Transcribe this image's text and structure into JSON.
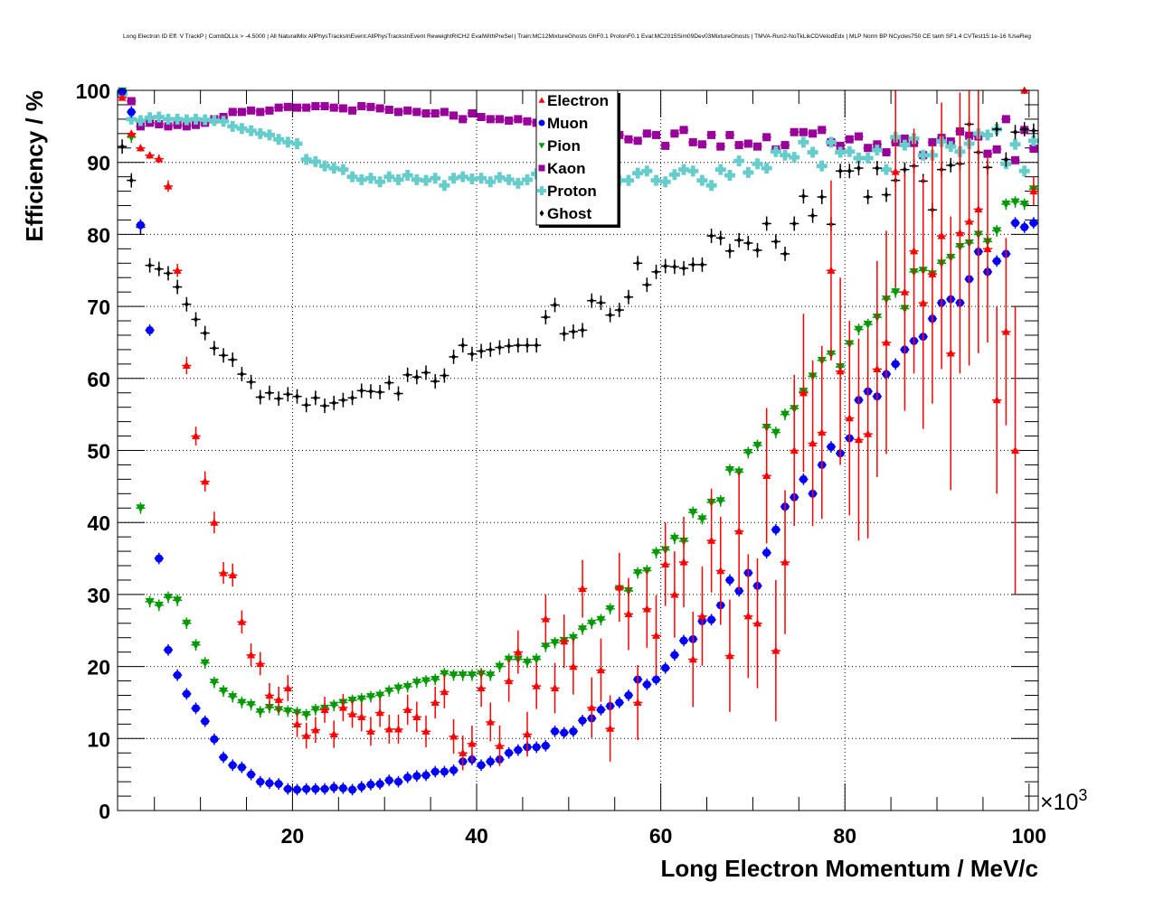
{
  "chart_data": {
    "type": "scatter",
    "title": "Long Electron ID Eff. V TrackP | CombDLLk > -4.5000 | All NaturalMix AllPhysTracksInEvent:AllPhysTracksInEvent ReweightRICH2 EvalWithPreSel | Train:MC12MixtureGhosts GhF0.1 ProtonF0.1 Eval:MC2015Sim09Dev03MixtureGhosts | TMVA-Run2-NoTkLikCDVelodEdx | MLP Norm BP NCycles750 CE tanh SF1.4 CVTest15:1e-16 !UseReg",
    "xlabel": "Long Electron Momentum / MeV/c",
    "ylabel": "Efficiency / %",
    "x_multiplier_label": "×10",
    "x_multiplier_exp": "3",
    "xlim": [
      1,
      101
    ],
    "ylim": [
      0,
      100
    ],
    "x_ticks": [
      "20",
      "40",
      "60",
      "80",
      "100"
    ],
    "x_tick_values": [
      20,
      40,
      60,
      80,
      100
    ],
    "y_ticks": [
      "0",
      "10",
      "20",
      "30",
      "40",
      "50",
      "60",
      "70",
      "80",
      "90",
      "100"
    ],
    "y_tick_values": [
      0,
      10,
      20,
      30,
      40,
      50,
      60,
      70,
      80,
      90,
      100
    ],
    "grid": true,
    "legend_placement": "top-center",
    "x_start": 1.5,
    "x_step": 1,
    "bin_half_width": 0.5,
    "series": [
      {
        "name": "Electron",
        "marker": "triangle-up",
        "color": "#ff0000",
        "values": [
          99,
          94,
          92,
          91,
          90.5,
          86.7,
          75,
          61.8,
          52,
          45.7,
          40,
          33,
          32.7,
          26.2,
          21.6,
          20.4,
          16,
          15.4,
          17,
          12,
          10.4,
          11.2,
          14,
          10.6,
          14.3,
          13.4,
          13,
          11,
          13.6,
          11.3,
          11.3,
          14,
          13,
          11,
          15,
          16.5,
          10.3,
          8,
          9.3,
          17,
          12.3,
          9,
          18,
          22,
          10.6,
          17.3,
          26.6,
          17,
          23.5,
          20,
          30.8,
          14.3,
          19.5,
          11.4,
          31,
          27.3,
          15,
          28,
          24.3,
          34.2,
          30,
          34.5,
          21,
          27,
          37.5,
          33.3,
          21.5,
          38.8,
          27,
          26,
          46.5,
          22.2,
          34.5,
          50,
          58,
          51,
          52.5,
          75,
          61,
          54.5,
          51.5,
          52.3,
          61.3,
          65,
          88.7,
          72,
          77.7,
          70.5,
          74.5,
          79.8,
          63.5,
          80.2,
          81.8,
          83.5,
          78,
          57,
          66.5,
          50,
          100,
          86
        ],
        "err": [
          0.3,
          0.5,
          0.5,
          0.5,
          0.6,
          0.8,
          0.9,
          1.2,
          1.3,
          1.4,
          1.5,
          1.5,
          1.6,
          1.6,
          1.6,
          1.6,
          1.7,
          1.8,
          1.8,
          1.8,
          1.8,
          1.8,
          1.8,
          1.9,
          1.9,
          1.9,
          2,
          2,
          2,
          2,
          2,
          2.1,
          2.1,
          2.2,
          2.2,
          2.3,
          2.4,
          2.4,
          2.5,
          2.6,
          2.7,
          2.8,
          2.9,
          3,
          3.1,
          3.2,
          3.4,
          3.5,
          3.7,
          3.9,
          4,
          4.2,
          4.4,
          4.6,
          4.8,
          5,
          5.2,
          5.4,
          5.6,
          5.8,
          6,
          6.3,
          6.6,
          6.9,
          7.2,
          7.5,
          7.8,
          8.2,
          8.6,
          9,
          9.4,
          9.8,
          10,
          10.5,
          11,
          11.5,
          12,
          12.5,
          13,
          13.5,
          14,
          14.5,
          15,
          15.5,
          16,
          16.5,
          17,
          17.5,
          18,
          18.5,
          19,
          19.5,
          20,
          20,
          13,
          13,
          13,
          20,
          0.5,
          2
        ]
      },
      {
        "name": "Muon",
        "marker": "circle",
        "color": "#0000ff",
        "values": [
          99.8,
          97,
          81.3,
          66.7,
          35,
          22.3,
          18.8,
          16.2,
          14.2,
          12.4,
          9.9,
          7.4,
          6.3,
          6,
          5,
          4,
          3.8,
          3.7,
          3,
          2.9,
          3,
          3,
          3,
          3.2,
          3.1,
          2.9,
          3.3,
          3.6,
          3.7,
          4.2,
          4,
          4.6,
          4.8,
          4.9,
          5.4,
          5.4,
          5.6,
          6.8,
          7.1,
          6.3,
          6.8,
          7.1,
          8,
          8.4,
          8.8,
          8.8,
          9,
          11,
          10.8,
          11,
          12.5,
          12.8,
          14,
          14.5,
          15,
          16,
          18.2,
          17.5,
          18.2,
          19.8,
          21.6,
          23.6,
          23.8,
          26.3,
          26.5,
          28.5,
          32,
          30.5,
          33,
          31.2,
          35.8,
          39,
          42.2,
          43.5,
          46,
          44,
          48,
          50.5,
          49.6,
          51.7,
          57,
          58.2,
          57.5,
          60.6,
          62,
          64,
          65.2,
          65.8,
          68.3,
          70.5,
          71,
          70.5,
          73.8,
          77.6,
          74.8,
          76.3,
          77.3,
          81.6,
          81,
          81.6
        ],
        "err_all": 0.8
      },
      {
        "name": "Pion",
        "marker": "triangle-down",
        "color": "#009900",
        "values": [
          99.9,
          93.5,
          42,
          29,
          28.5,
          29.6,
          29.2,
          26,
          23,
          20.5,
          17.8,
          16.6,
          15.8,
          15,
          14.7,
          13.7,
          14.3,
          14,
          13.8,
          13.6,
          13.3,
          14,
          14.2,
          14.6,
          15,
          15.3,
          15.5,
          15.8,
          16,
          16.6,
          17,
          17.2,
          17.8,
          18,
          18.2,
          19,
          18.8,
          18.8,
          18.8,
          19,
          18.8,
          20,
          21,
          21,
          20.6,
          21,
          22.8,
          23.3,
          23.6,
          24,
          25.2,
          26,
          26.5,
          28,
          30.8,
          30.5,
          33,
          33.3,
          35.8,
          36.2,
          37.8,
          37.4,
          41.4,
          40.5,
          42.8,
          43,
          47.3,
          47,
          49.7,
          50.7,
          53.2,
          52.5,
          55,
          55.8,
          58.2,
          60.3,
          62.5,
          63.4,
          61.6,
          64.8,
          66.8,
          67.5,
          68.5,
          71,
          72,
          69.7,
          74.8,
          75,
          74.5,
          76,
          76.8,
          78.3,
          78.8,
          80,
          79,
          80.5,
          84.2,
          84.5,
          84.2,
          86.3
        ],
        "err_all": 0.8
      },
      {
        "name": "Kaon",
        "marker": "square",
        "color": "#990099",
        "values": [
          99.7,
          98.5,
          95,
          95.5,
          95.3,
          95,
          95.2,
          95,
          95.2,
          95.5,
          96,
          96.3,
          97,
          97,
          97.2,
          97,
          97.2,
          97.6,
          97.7,
          97.6,
          97.6,
          97.8,
          97.8,
          97.6,
          97.5,
          97.2,
          97.8,
          97.7,
          97.5,
          97.3,
          97,
          97.2,
          97,
          96.8,
          96.8,
          97,
          96.5,
          96,
          96.8,
          96.3,
          96,
          96,
          95.8,
          96,
          95.7,
          95.5,
          95.4,
          95.3,
          95,
          94.8,
          94.6,
          94.5,
          94.2,
          94,
          93.8,
          93.2,
          93,
          94,
          93.8,
          92.3,
          94,
          94.5,
          92.8,
          92.5,
          93.8,
          92.2,
          93.8,
          92.4,
          92.6,
          92.2,
          93.5,
          91.8,
          92.4,
          94.2,
          94.2,
          94,
          94.5,
          92.8,
          92.3,
          93.2,
          93.6,
          92,
          92.5,
          91.4,
          92.8,
          93.3,
          92.7,
          91,
          92.8,
          93.4,
          92.9,
          94.3,
          93.7,
          93.6,
          91.2,
          91.8,
          96,
          90.3,
          94.5,
          91.9
        ],
        "err_all": 0.4
      },
      {
        "name": "Proton",
        "marker": "cross",
        "color": "#66cccc",
        "values": [
          99.5,
          96,
          95.8,
          96.2,
          96.3,
          96,
          96,
          95.9,
          96,
          95.9,
          95.8,
          95.7,
          95,
          94.7,
          94.4,
          94,
          93.8,
          93.2,
          92.8,
          92.6,
          90.4,
          90.1,
          89.5,
          89.2,
          89,
          88,
          87.6,
          87.8,
          87.3,
          88,
          87.6,
          88.2,
          87.6,
          87.5,
          87.8,
          86.8,
          87.8,
          88,
          87.7,
          87.8,
          87.3,
          87.9,
          87.6,
          87.1,
          87.6,
          88.4,
          89,
          88.6,
          88.2,
          88,
          87.8,
          88,
          87.6,
          87.8,
          87.5,
          87.5,
          88.5,
          88.8,
          87.5,
          87.3,
          88.3,
          89,
          88.8,
          87.5,
          86.8,
          89,
          88.2,
          90.2,
          88.6,
          89.8,
          89.2,
          91.5,
          91,
          90.7,
          92.8,
          91.4,
          89.5,
          92.8,
          91.4,
          91.5,
          90.6,
          90.6,
          91.7,
          89,
          93.5,
          92.4,
          93.3,
          91,
          91,
          92.9,
          92.2,
          91.5,
          92.6,
          94,
          93.8,
          94.6,
          89.8,
          92.5,
          88.8,
          93
        ],
        "err_all": 0.5
      },
      {
        "name": "Ghost",
        "marker": "diamond",
        "color": "#000000",
        "values": [
          92.2,
          87.5,
          81,
          75.7,
          75.2,
          74.6,
          72.7,
          70.3,
          68.2,
          66.3,
          64.2,
          63.2,
          62.6,
          60.6,
          59.5,
          57.4,
          58,
          57.2,
          57.8,
          57.5,
          56.3,
          57.3,
          56.2,
          56.6,
          57,
          57.3,
          58.3,
          58.2,
          58.1,
          59.4,
          57.9,
          60.5,
          60.2,
          60.8,
          59.6,
          60.4,
          63,
          64.6,
          63.4,
          63.8,
          64,
          64.3,
          64.5,
          64.6,
          64.6,
          64.6,
          68.5,
          70.2,
          66.2,
          66.5,
          66.7,
          70.8,
          70.5,
          68.8,
          69.5,
          71.3,
          76,
          73,
          74.8,
          75.6,
          75.5,
          75.3,
          75.8,
          75.8,
          79.8,
          79.5,
          77.7,
          79.2,
          78.8,
          77.8,
          81.5,
          79,
          77.3,
          81.5,
          85.3,
          82.6,
          85.2,
          81.4,
          88.8,
          88.8,
          89.2,
          85.2,
          89.2,
          85.5,
          87.5,
          89,
          89.5,
          87.4,
          83.4,
          89,
          89.6,
          89.8,
          95.3,
          91.4,
          89.3,
          94.6,
          90.4,
          94.2,
          94.6,
          94.4
        ],
        "err_all": 1.0
      }
    ]
  }
}
